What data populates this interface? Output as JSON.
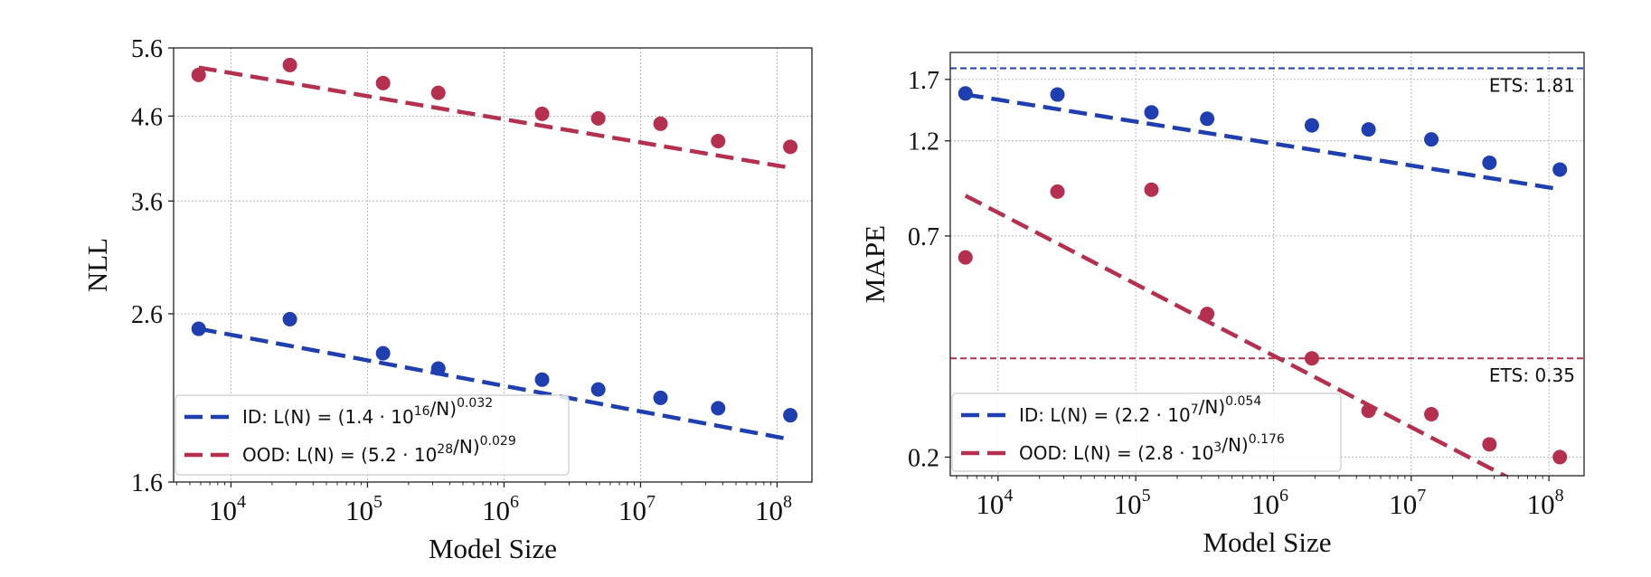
{
  "figure": {
    "id": "scaling-law-figure"
  },
  "chart_data": [
    {
      "type": "scatter",
      "title": "",
      "xlabel": "Model Size",
      "ylabel": "NLL",
      "xscale": "log",
      "yscale": "log",
      "xlim": [
        3800,
        180000000
      ],
      "ylim": [
        1.6,
        5.6
      ],
      "xticks": [
        {
          "value": 10000,
          "base": "10",
          "exp": "4"
        },
        {
          "value": 100000,
          "base": "10",
          "exp": "5"
        },
        {
          "value": 1000000,
          "base": "10",
          "exp": "6"
        },
        {
          "value": 10000000,
          "base": "10",
          "exp": "7"
        },
        {
          "value": 100000000,
          "base": "10",
          "exp": "8"
        }
      ],
      "yticks": [
        {
          "value": 1.6,
          "label": "1.6"
        },
        {
          "value": 2.6,
          "label": "2.6"
        },
        {
          "value": 3.6,
          "label": "3.6"
        },
        {
          "value": 4.6,
          "label": "4.6"
        },
        {
          "value": 5.6,
          "label": "5.6"
        }
      ],
      "grid": true,
      "legend_position": "lower-left",
      "series": [
        {
          "name": "ID",
          "color": "#1f3fb0",
          "x": [
            5800,
            27000,
            130000,
            330000,
            1900000,
            4900000,
            14000000,
            37000000,
            125000000
          ],
          "y": [
            2.49,
            2.56,
            2.32,
            2.22,
            2.15,
            2.09,
            2.04,
            1.98,
            1.94
          ],
          "fit": {
            "coef_mantissa": 1.4,
            "coef_exp": 16,
            "exponent": 0.032
          },
          "legend": {
            "prefix": "ID: ",
            "label": "L(N) = (1.4 · 10",
            "sup1": "16",
            "mid": "/N)",
            "sup2": "0.032"
          }
        },
        {
          "name": "OOD",
          "color": "#b5304f",
          "x": [
            5800,
            27000,
            130000,
            330000,
            1900000,
            4900000,
            14000000,
            37000000,
            125000000
          ],
          "y": [
            5.18,
            5.33,
            5.06,
            4.92,
            4.63,
            4.57,
            4.5,
            4.28,
            4.21
          ],
          "fit": {
            "coef_mantissa": 5.2,
            "coef_exp": 28,
            "exponent": 0.029
          },
          "legend": {
            "prefix": "OOD: ",
            "label": "L(N) = (5.2 · 10",
            "sup1": "28",
            "mid": "/N)",
            "sup2": "0.029"
          }
        }
      ]
    },
    {
      "type": "scatter",
      "title": "",
      "xlabel": "Model Size",
      "ylabel": "MAPE",
      "xscale": "log",
      "yscale": "log",
      "xlim": [
        4500,
        180000000
      ],
      "ylim": [
        0.18,
        1.98
      ],
      "xticks": [
        {
          "value": 10000,
          "base": "10",
          "exp": "4"
        },
        {
          "value": 100000,
          "base": "10",
          "exp": "5"
        },
        {
          "value": 1000000,
          "base": "10",
          "exp": "6"
        },
        {
          "value": 10000000,
          "base": "10",
          "exp": "7"
        },
        {
          "value": 100000000,
          "base": "10",
          "exp": "8"
        }
      ],
      "yticks": [
        {
          "value": 0.2,
          "label": "0.2"
        },
        {
          "value": 0.7,
          "label": "0.7"
        },
        {
          "value": 1.2,
          "label": "1.2"
        },
        {
          "value": 1.7,
          "label": "1.7"
        }
      ],
      "grid": true,
      "legend_position": "lower-left",
      "reference_lines": [
        {
          "value": 1.81,
          "label": "ETS: 1.81",
          "color": "#1f3fb0"
        },
        {
          "value": 0.35,
          "label": "ETS: 0.35",
          "color": "#b5304f"
        }
      ],
      "series": [
        {
          "name": "ID",
          "color": "#1f3fb0",
          "x": [
            5800,
            27000,
            130000,
            330000,
            1900000,
            4900000,
            14000000,
            37000000,
            120000000
          ],
          "y": [
            1.57,
            1.56,
            1.41,
            1.36,
            1.31,
            1.28,
            1.21,
            1.06,
            1.02
          ],
          "fit": {
            "coef_mantissa": 2.2,
            "coef_exp": 7,
            "exponent": 0.054
          },
          "legend": {
            "prefix": "ID: ",
            "label": "L(N) = (2.2 · 10",
            "sup1": "7",
            "mid": "/N)",
            "sup2": "0.054"
          }
        },
        {
          "name": "OOD",
          "color": "#b5304f",
          "x": [
            5800,
            27000,
            130000,
            330000,
            1900000,
            4900000,
            14000000,
            37000000,
            120000000
          ],
          "y": [
            0.62,
            0.9,
            0.91,
            0.45,
            0.35,
            0.26,
            0.255,
            0.215,
            0.2
          ],
          "fit": {
            "coef_mantissa": 2.8,
            "coef_exp": 3,
            "exponent": 0.176
          },
          "legend": {
            "prefix": "OOD: ",
            "label": "L(N) = (2.8 · 10",
            "sup1": "3",
            "mid": "/N)",
            "sup2": "0.176"
          }
        }
      ]
    }
  ]
}
